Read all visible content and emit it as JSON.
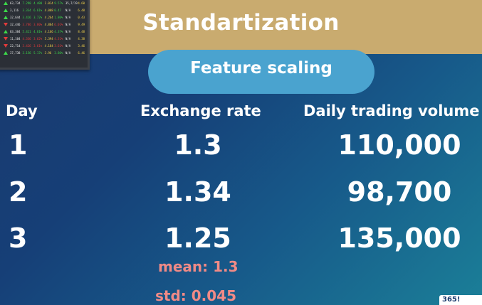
{
  "header": {
    "title": "Standartization"
  },
  "pill": {
    "label": "Feature scaling"
  },
  "table": {
    "columns": [
      "Day",
      "Exchange rate",
      "Daily trading volume"
    ],
    "rows": [
      {
        "day": "1",
        "rate": "1.3",
        "volume": "110,000"
      },
      {
        "day": "2",
        "rate": "1.34",
        "volume": "98,700"
      },
      {
        "day": "3",
        "rate": "1.25",
        "volume": "135,000"
      }
    ]
  },
  "stats": {
    "mean": "mean: 1.3",
    "std": "std: 0.045"
  },
  "corner": {
    "text": "365!"
  },
  "colors": {
    "banner": "#c9ab6f",
    "pill": "#4aa3cf",
    "stat_text": "#f08a86"
  },
  "ticker_image": {
    "rows": [
      {
        "dir": "up",
        "a": "63,734",
        "b": "7.290",
        "c": "4.400",
        "d": "1.014",
        "e": "9.57%",
        "f": "35,7/19",
        "g": "4.60"
      },
      {
        "dir": "up",
        "a": "3,116",
        "b": "3.334",
        "c": "6.61%",
        "d": "4.008",
        "e": "0.47",
        "f": "N/A",
        "g": "6.48"
      },
      {
        "dir": "up",
        "a": "32,644",
        "b": "3.416",
        "c": "3.72%",
        "d": "4.264",
        "e": "1.80%",
        "f": "N/A",
        "g": "0.43"
      },
      {
        "dir": "down",
        "a": "32,446",
        "b": "3.786",
        "c": "3.80%",
        "d": "4.884",
        "e": "6.01%",
        "f": "N/A",
        "g": "9.49"
      },
      {
        "dir": "up",
        "a": "83,384",
        "b": "5.411",
        "c": "4.61%",
        "d": "4.166",
        "e": "4.37%",
        "f": "N/A",
        "g": "8.48"
      },
      {
        "dir": "down",
        "a": "11,104",
        "b": "4.336",
        "c": "3.62%",
        "d": "5.394",
        "e": "4.31%",
        "f": "N/A",
        "g": "4.38"
      },
      {
        "dir": "down",
        "a": "22,714",
        "b": "3.426",
        "c": "3.61%",
        "d": "4.184",
        "e": "3.61%",
        "f": "N/A",
        "g": "3.46"
      },
      {
        "dir": "up",
        "a": "37,738",
        "b": "3.156",
        "c": "5.17%",
        "d": "3.96",
        "e": "3.86%",
        "f": "N/A",
        "g": "6.46"
      }
    ]
  }
}
